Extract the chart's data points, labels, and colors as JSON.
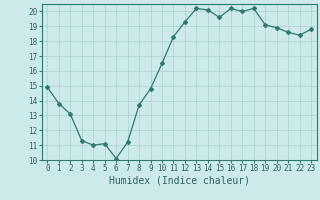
{
  "x": [
    0,
    1,
    2,
    3,
    4,
    5,
    6,
    7,
    8,
    9,
    10,
    11,
    12,
    13,
    14,
    15,
    16,
    17,
    18,
    19,
    20,
    21,
    22,
    23
  ],
  "y": [
    14.9,
    13.8,
    13.1,
    11.3,
    11.0,
    11.1,
    10.1,
    11.2,
    13.7,
    14.8,
    16.5,
    18.3,
    19.3,
    20.2,
    20.1,
    19.6,
    20.2,
    20.0,
    20.2,
    19.1,
    18.9,
    18.6,
    18.4,
    18.8
  ],
  "xlabel": "Humidex (Indice chaleur)",
  "xlim": [
    -0.5,
    23.5
  ],
  "ylim": [
    10,
    20.5
  ],
  "yticks": [
    10,
    11,
    12,
    13,
    14,
    15,
    16,
    17,
    18,
    19,
    20
  ],
  "xticks": [
    0,
    1,
    2,
    3,
    4,
    5,
    6,
    7,
    8,
    9,
    10,
    11,
    12,
    13,
    14,
    15,
    16,
    17,
    18,
    19,
    20,
    21,
    22,
    23
  ],
  "line_color": "#2d7a6e",
  "marker": "D",
  "marker_size": 2.0,
  "bg_color": "#cdeaea",
  "grid_color": "#aecece",
  "axis_color": "#2d7a6e",
  "tick_label_color": "#2d6060",
  "xlabel_color": "#2d6060",
  "xlabel_fontsize": 7,
  "tick_fontsize": 5.5
}
